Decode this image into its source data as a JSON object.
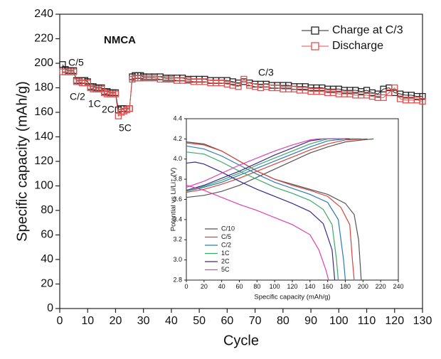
{
  "chart_data": [
    {
      "type": "line",
      "marker": "square",
      "legend": "upper right",
      "xlabel": "Cycle",
      "ylabel": "Specific capacity (mAh/g)",
      "annotations": [
        "NMCA",
        "C/5",
        "C/2",
        "1C",
        "2C",
        "5C",
        "C/3"
      ],
      "xlim": [
        0,
        130
      ],
      "xticks": [
        0,
        10,
        20,
        30,
        40,
        50,
        60,
        70,
        80,
        90,
        100,
        110,
        120,
        130
      ],
      "ylim": [
        0,
        240
      ],
      "yticks": [
        0,
        20,
        40,
        60,
        80,
        100,
        120,
        140,
        160,
        180,
        200,
        220,
        240
      ],
      "x": [
        1,
        2,
        3,
        4,
        5,
        6,
        7,
        8,
        9,
        10,
        11,
        12,
        13,
        14,
        15,
        16,
        17,
        18,
        19,
        20,
        21,
        22,
        23,
        24,
        25,
        26,
        27,
        28,
        29,
        30,
        32,
        34,
        36,
        38,
        40,
        42,
        44,
        46,
        48,
        50,
        52,
        54,
        56,
        58,
        60,
        62,
        64,
        66,
        68,
        70,
        72,
        74,
        76,
        78,
        80,
        82,
        84,
        86,
        88,
        90,
        92,
        94,
        96,
        98,
        100,
        102,
        104,
        106,
        108,
        110,
        112,
        114,
        116,
        118,
        120,
        122,
        124,
        126,
        128,
        130
      ],
      "series": [
        {
          "name": "Charge at C/3",
          "color": "#222222",
          "values": [
            199,
            195,
            194,
            194,
            194,
            186,
            186,
            186,
            186,
            185,
            181,
            181,
            180,
            180,
            180,
            177,
            177,
            176,
            176,
            176,
            162,
            163,
            163,
            163,
            163,
            189,
            190,
            190,
            190,
            189,
            189,
            189,
            189,
            188,
            188,
            188,
            188,
            187,
            187,
            187,
            187,
            186,
            186,
            186,
            186,
            185,
            184,
            185,
            184,
            183,
            183,
            183,
            182,
            182,
            182,
            182,
            181,
            181,
            181,
            180,
            180,
            180,
            179,
            179,
            179,
            178,
            178,
            178,
            177,
            178,
            176,
            175,
            179,
            180,
            176,
            175,
            174,
            174,
            173,
            173
          ]
        },
        {
          "name": "Discharge",
          "color": "#e05050",
          "values": [
            193,
            193,
            193,
            193,
            193,
            185,
            185,
            184,
            184,
            184,
            180,
            179,
            179,
            179,
            179,
            176,
            175,
            175,
            175,
            175,
            157,
            160,
            161,
            162,
            163,
            187,
            188,
            188,
            188,
            188,
            188,
            188,
            187,
            187,
            187,
            186,
            186,
            186,
            185,
            185,
            185,
            184,
            184,
            184,
            183,
            182,
            181,
            187,
            182,
            181,
            180,
            181,
            180,
            180,
            179,
            179,
            179,
            178,
            178,
            177,
            177,
            177,
            176,
            176,
            175,
            175,
            175,
            174,
            174,
            174,
            173,
            172,
            172,
            176,
            180,
            171,
            170,
            170,
            170,
            169
          ]
        }
      ]
    },
    {
      "type": "line",
      "legend": "lower left",
      "xlabel": "Specific capacity (mAh/g)",
      "ylabel": "Potential vs Li/Li⁺ (V)",
      "xlim": [
        0,
        240
      ],
      "xticks": [
        0,
        20,
        40,
        60,
        80,
        100,
        120,
        140,
        160,
        180,
        200,
        220,
        240
      ],
      "ylim": [
        2.8,
        4.4
      ],
      "yticks": [
        2.8,
        {
          "value": 3,
          "label": "3.0"
        },
        3.2,
        3.4,
        3.6,
        3.8,
        {
          "value": 4,
          "label": "4.0"
        },
        4.2,
        4.4
      ],
      "series": [
        {
          "name": "C/10",
          "color": "#555555",
          "x": [
            0,
            20,
            40,
            60,
            80,
            100,
            120,
            140,
            160,
            180,
            200,
            212,
            null,
            0,
            20,
            40,
            60,
            80,
            100,
            120,
            140,
            160,
            180,
            190,
            195,
            198
          ],
          "values": [
            3.62,
            3.64,
            3.68,
            3.74,
            3.82,
            3.9,
            3.98,
            4.06,
            4.12,
            4.17,
            4.19,
            4.2,
            null,
            4.17,
            4.15,
            4.08,
            3.98,
            3.88,
            3.8,
            3.75,
            3.7,
            3.65,
            3.56,
            3.45,
            3.2,
            2.8
          ]
        },
        {
          "name": "C/5",
          "color": "#d9433a",
          "x": [
            0,
            20,
            40,
            60,
            80,
            100,
            120,
            140,
            160,
            180,
            205,
            null,
            0,
            20,
            40,
            60,
            80,
            100,
            120,
            140,
            160,
            175,
            185,
            188,
            190
          ],
          "values": [
            3.67,
            3.7,
            3.75,
            3.81,
            3.88,
            3.95,
            4.02,
            4.09,
            4.15,
            4.19,
            4.2,
            null,
            4.16,
            4.14,
            4.08,
            3.98,
            3.88,
            3.8,
            3.74,
            3.69,
            3.63,
            3.52,
            3.35,
            3,
            2.8
          ]
        },
        {
          "name": "C/2",
          "color": "#2c7bb6",
          "x": [
            0,
            20,
            40,
            60,
            80,
            100,
            120,
            140,
            160,
            180,
            198,
            null,
            0,
            20,
            40,
            60,
            80,
            100,
            120,
            140,
            160,
            172,
            178,
            180
          ],
          "values": [
            3.68,
            3.72,
            3.77,
            3.84,
            3.91,
            3.98,
            4.05,
            4.12,
            4.18,
            4.2,
            4.2,
            null,
            4.13,
            4.1,
            4.03,
            3.94,
            3.85,
            3.77,
            3.71,
            3.65,
            3.57,
            3.4,
            3,
            2.8
          ]
        },
        {
          "name": "1C",
          "color": "#3aaa6a",
          "x": [
            0,
            20,
            40,
            60,
            80,
            100,
            120,
            140,
            160,
            190,
            null,
            0,
            20,
            40,
            60,
            80,
            100,
            120,
            140,
            155,
            165,
            170,
            172
          ],
          "values": [
            3.68,
            3.73,
            3.79,
            3.86,
            3.94,
            4.01,
            4.08,
            4.15,
            4.2,
            4.2,
            null,
            4.07,
            4.05,
            3.97,
            3.88,
            3.8,
            3.72,
            3.66,
            3.59,
            3.5,
            3.35,
            3,
            2.8
          ]
        },
        {
          "name": "2C",
          "color": "#3b2a8a",
          "x": [
            0,
            20,
            40,
            60,
            80,
            100,
            120,
            140,
            155,
            185,
            null,
            0,
            10,
            20,
            40,
            60,
            80,
            100,
            120,
            140,
            155,
            165,
            168
          ],
          "values": [
            3.69,
            3.74,
            3.81,
            3.88,
            3.96,
            4.04,
            4.11,
            4.18,
            4.2,
            4.2,
            null,
            3.96,
            3.97,
            3.95,
            3.87,
            3.78,
            3.7,
            3.63,
            3.56,
            3.48,
            3.36,
            3.1,
            2.8
          ]
        },
        {
          "name": "5C",
          "color": "#e040b0",
          "x": [
            0,
            20,
            40,
            60,
            80,
            100,
            120,
            140,
            150,
            180,
            null,
            0,
            20,
            40,
            60,
            80,
            100,
            120,
            140,
            150,
            158,
            161
          ],
          "values": [
            3.72,
            3.78,
            3.86,
            3.94,
            4.01,
            4.08,
            4.14,
            4.19,
            4.2,
            4.2,
            null,
            3.74,
            3.69,
            3.62,
            3.55,
            3.49,
            3.42,
            3.35,
            3.25,
            3.1,
            2.9,
            2.8
          ]
        }
      ]
    }
  ]
}
